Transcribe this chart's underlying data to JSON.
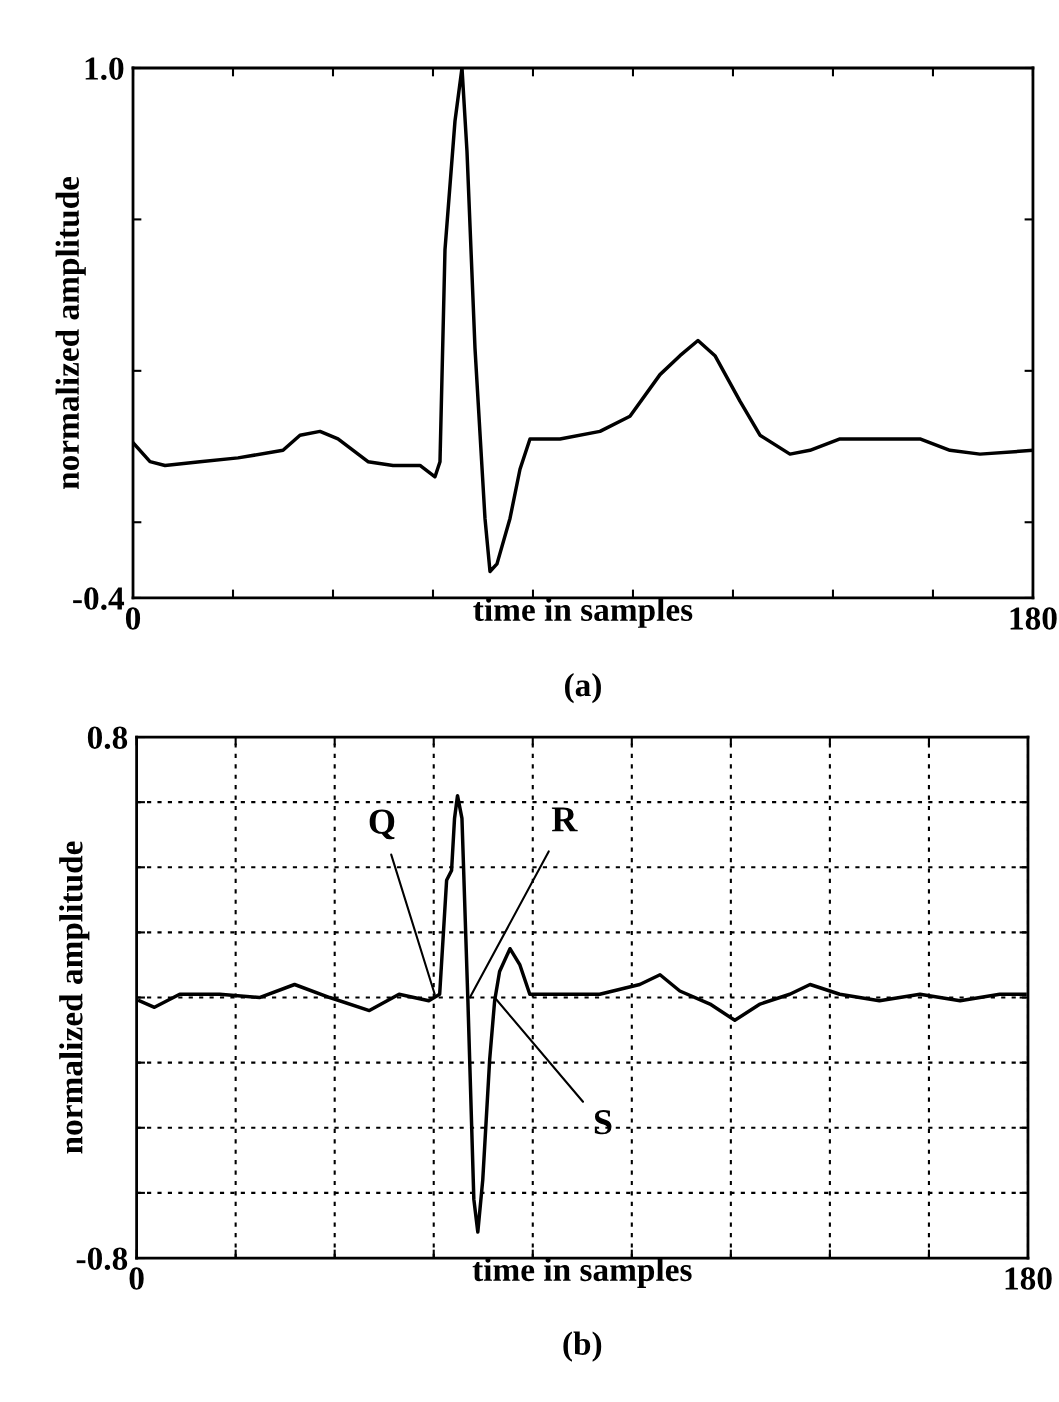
{
  "chart_data": [
    {
      "type": "line",
      "xlabel": "time in samples",
      "ylabel": "normalized amplitude",
      "annotations": [
        "(a)"
      ],
      "x": [
        0,
        3.4,
        6.4,
        13.4,
        21,
        30,
        33.4,
        37.4,
        41,
        47,
        52,
        57.4,
        60.4,
        61.4,
        62.4,
        64.4,
        65.8,
        66.8,
        68.4,
        70.4,
        71.4,
        72.8,
        75.4,
        77.4,
        79.4,
        85.4,
        93.4,
        99.4,
        105.4,
        109.4,
        113,
        116.4,
        121.4,
        125.4,
        131.4,
        135.4,
        141.4,
        149.4,
        157.4,
        163.4,
        169.4,
        180
      ],
      "series": [
        {
          "color": "#000000",
          "values": [
            0.01,
            -0.04,
            -0.05,
            -0.04,
            -0.03,
            -0.01,
            0.03,
            0.04,
            0.02,
            -0.04,
            -0.05,
            -0.05,
            -0.08,
            -0.04,
            0.52,
            0.86,
            1.0,
            0.78,
            0.26,
            -0.19,
            -0.33,
            -0.31,
            -0.19,
            -0.06,
            0.02,
            0.02,
            0.04,
            0.08,
            0.19,
            0.24,
            0.28,
            0.24,
            0.12,
            0.03,
            -0.02,
            -0.01,
            0.02,
            0.02,
            0.02,
            -0.01,
            -0.02,
            -0.01
          ]
        }
      ],
      "xlim": [
        0,
        180
      ],
      "xticks": [
        0,
        {
          "value": 20,
          "label": null
        },
        {
          "value": 40,
          "label": null
        },
        {
          "value": 60,
          "label": null
        },
        {
          "value": 80,
          "label": null
        },
        {
          "value": 100,
          "label": null
        },
        {
          "value": 120,
          "label": null
        },
        {
          "value": 140,
          "label": null
        },
        {
          "value": 160,
          "label": null
        },
        180
      ],
      "ylim": [
        -0.4,
        1.0
      ],
      "yticks": [
        {
          "value": -0.4,
          "label": "-0.4"
        },
        {
          "value": -0.2,
          "label": null
        },
        {
          "value": 0.2,
          "label": null
        },
        {
          "value": 0.6,
          "label": null
        },
        {
          "value": 1.0,
          "label": "1.0"
        }
      ],
      "grid": false,
      "line_style": "solid"
    },
    {
      "type": "line",
      "xlabel": "time in samples",
      "ylabel": "normalized amplitude",
      "annotations": [
        {
          "text": "Q",
          "x": 60.2,
          "y": 0.01
        },
        {
          "text": "R",
          "x": 67.3,
          "y": 0.0
        },
        {
          "text": "S",
          "x": 72.3,
          "y": 0.0
        },
        "(b)"
      ],
      "x": [
        0.6,
        3.6,
        8.7,
        16.8,
        24.8,
        31.9,
        39,
        47,
        53,
        59,
        61.2,
        62.6,
        63.6,
        64.2,
        64.8,
        65.7,
        66.9,
        68.1,
        68.9,
        69.9,
        71.3,
        72.3,
        73.3,
        75.4,
        77.4,
        79.4,
        85.5,
        93.5,
        101.6,
        105.7,
        109.7,
        115.8,
        120.8,
        125.9,
        131.9,
        136,
        142,
        150,
        158.2,
        166.3,
        174.3,
        179.4
      ],
      "series": [
        {
          "color": "#000000",
          "values": [
            -0.01,
            -0.03,
            0.01,
            0.01,
            0.0,
            0.04,
            0.0,
            -0.04,
            0.01,
            -0.01,
            0.01,
            0.36,
            0.39,
            0.55,
            0.62,
            0.55,
            -0.01,
            -0.62,
            -0.72,
            -0.56,
            -0.19,
            -0.01,
            0.08,
            0.15,
            0.1,
            0.01,
            0.01,
            0.01,
            0.04,
            0.07,
            0.02,
            -0.02,
            -0.07,
            -0.02,
            0.01,
            0.04,
            0.01,
            -0.01,
            0.01,
            -0.01,
            0.01,
            0.01
          ]
        }
      ],
      "xlim": [
        0,
        180
      ],
      "xticks": [
        0,
        {
          "value": 20,
          "label": null
        },
        {
          "value": 40,
          "label": null
        },
        {
          "value": 60,
          "label": null
        },
        {
          "value": 80,
          "label": null
        },
        {
          "value": 100,
          "label": null
        },
        {
          "value": 120,
          "label": null
        },
        {
          "value": 140,
          "label": null
        },
        {
          "value": 160,
          "label": null
        },
        180
      ],
      "ylim": [
        -0.8,
        0.8
      ],
      "yticks": [
        {
          "value": -0.8,
          "label": "-0.8"
        },
        {
          "value": -0.6,
          "label": null
        },
        {
          "value": -0.4,
          "label": null
        },
        {
          "value": -0.2,
          "label": null
        },
        {
          "value": 0.0,
          "label": null
        },
        {
          "value": 0.2,
          "label": null
        },
        {
          "value": 0.4,
          "label": null
        },
        {
          "value": 0.6,
          "label": null
        },
        0.8
      ],
      "grid": true,
      "line_style": "solid"
    }
  ]
}
